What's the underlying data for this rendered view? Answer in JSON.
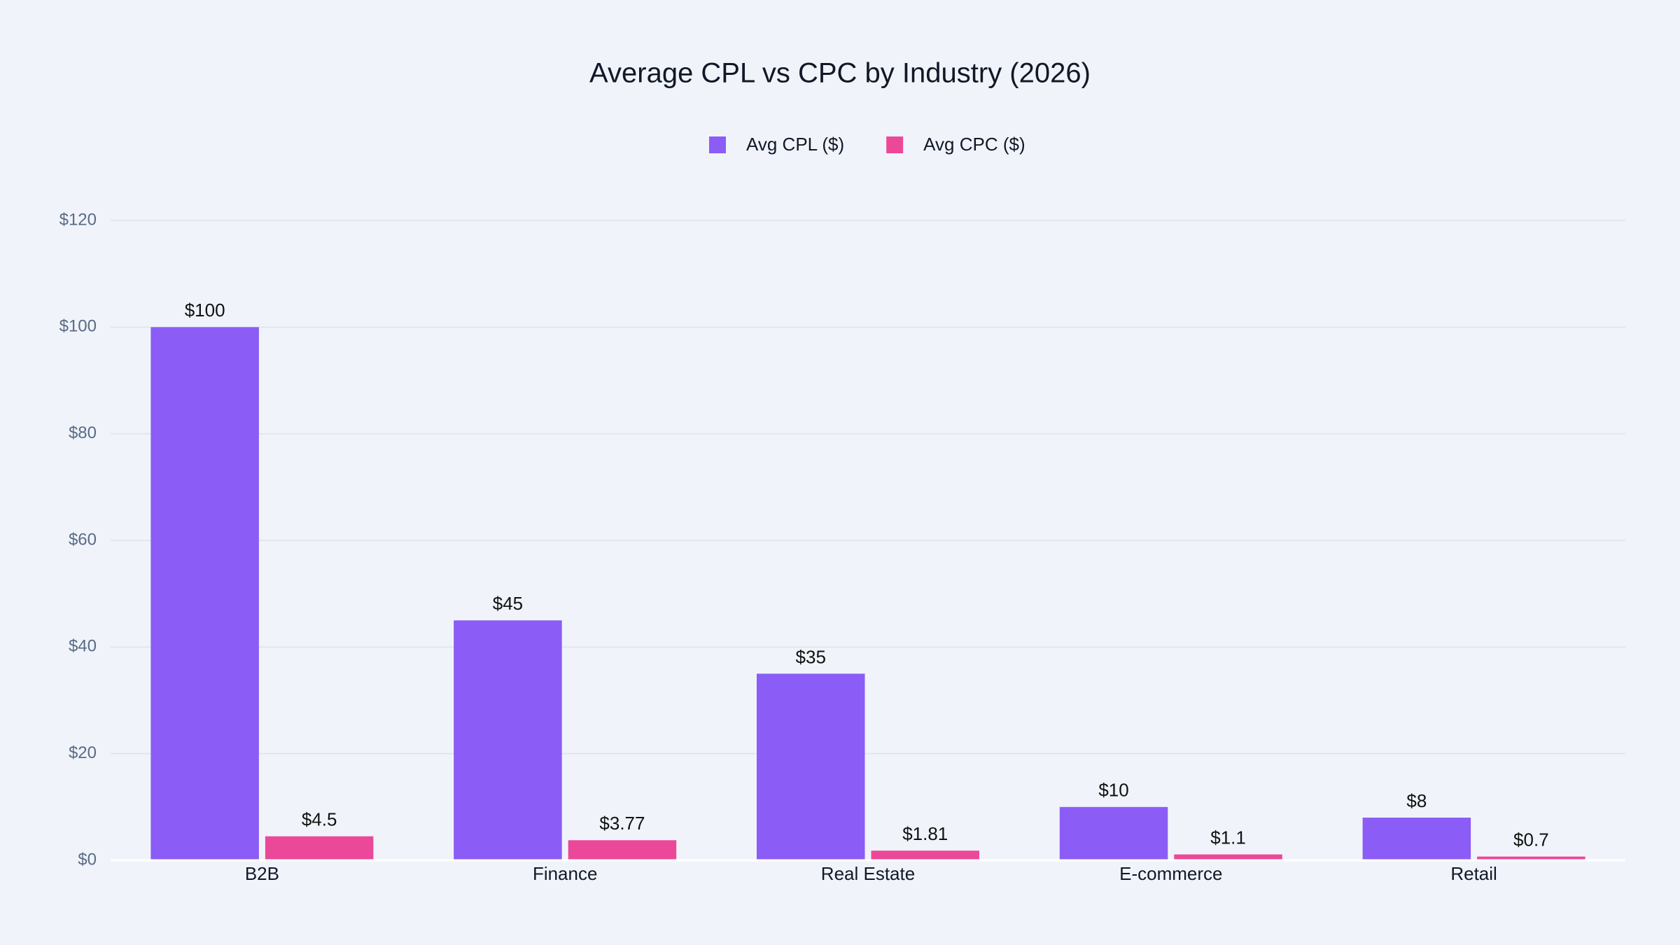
{
  "chart_data": {
    "type": "bar",
    "title": "Average CPL vs CPC by Industry (2026)",
    "categories": [
      "B2B",
      "Finance",
      "Real Estate",
      "E-commerce",
      "Retail"
    ],
    "series": [
      {
        "name": "Avg CPL ($)",
        "color": "#8b5cf6",
        "values": [
          100,
          45,
          35,
          10,
          8
        ],
        "value_labels": [
          "$100",
          "$45",
          "$35",
          "$10",
          "$8"
        ]
      },
      {
        "name": "Avg CPC ($)",
        "color": "#ec4899",
        "values": [
          4.5,
          3.77,
          1.81,
          1.1,
          0.7
        ],
        "value_labels": [
          "$4.5",
          "$3.77",
          "$1.81",
          "$1.1",
          "$0.7"
        ]
      }
    ],
    "ylim": [
      0,
      120
    ],
    "yticks": [
      {
        "value": 0,
        "label": "$0"
      },
      {
        "value": 20,
        "label": "$20"
      },
      {
        "value": 40,
        "label": "$40"
      },
      {
        "value": 60,
        "label": "$60"
      },
      {
        "value": 80,
        "label": "$80"
      },
      {
        "value": 100,
        "label": "$100"
      },
      {
        "value": 120,
        "label": "$120"
      }
    ],
    "grid": true,
    "legend": "top"
  }
}
